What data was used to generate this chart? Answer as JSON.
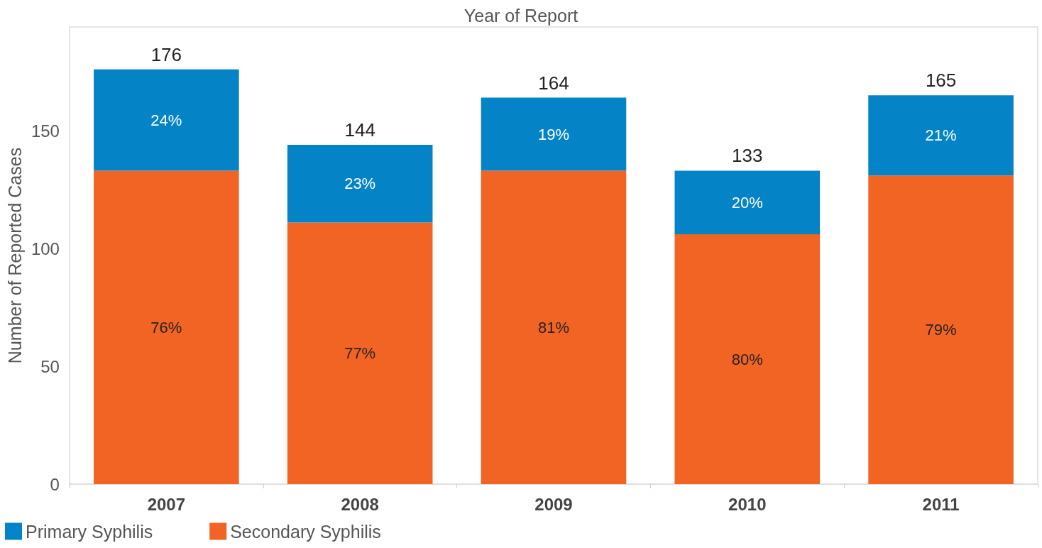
{
  "chart_data": {
    "type": "bar",
    "stacked": true,
    "xlabel": "Year of Report",
    "ylabel": "Number of Reported Cases",
    "categories": [
      "2007",
      "2008",
      "2009",
      "2010",
      "2011"
    ],
    "series": [
      {
        "name": "Secondary Syphilis",
        "color": "#f26424",
        "values": [
          133,
          111,
          133,
          106,
          131
        ]
      },
      {
        "name": "Primary Syphilis",
        "color": "#0484c6",
        "values": [
          43,
          33,
          31,
          27,
          34
        ]
      }
    ],
    "annotations": [
      "76%",
      "77%",
      "81%",
      "80%",
      "79%",
      "24%",
      "23%",
      "19%",
      "20%",
      "21%"
    ],
    "totals": [
      "176",
      "144",
      "164",
      "133",
      "165"
    ],
    "ylim": [
      0,
      194
    ],
    "yticks": [
      0,
      50,
      100,
      150
    ],
    "grid": false,
    "legend": "bottom left"
  }
}
